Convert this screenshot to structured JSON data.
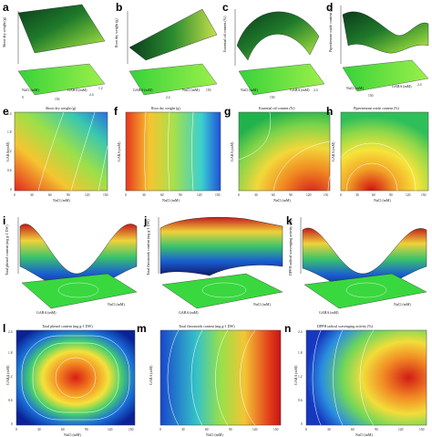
{
  "figure": {
    "panels": [
      {
        "letter": "a",
        "type": "surface",
        "zaxis": "Shoot dry weight (g)",
        "xaxis": "NaCl (mM)",
        "yaxis": "GABA (mM)",
        "ticks_x": [
          "0",
          "150"
        ],
        "ticks_y": [
          "2.4",
          "1.2"
        ],
        "shape": "plane-tilt",
        "colormap": "green-yellow"
      },
      {
        "letter": "b",
        "type": "surface",
        "zaxis": "Root dry weight (g)",
        "xaxis": "GABA (mM)",
        "yaxis": "NaCl (mM)",
        "ticks_x": [
          "2.4"
        ],
        "ticks_y": [
          "150"
        ],
        "shape": "plane-tilt",
        "colormap": "green-yellow"
      },
      {
        "letter": "c",
        "type": "surface",
        "zaxis": "Essential oil content (%)",
        "xaxis": "NaCl (mM)",
        "yaxis": "GABA (mM)",
        "ticks_x": [
          "150"
        ],
        "ticks_y": [
          "2.4"
        ],
        "shape": "ridge",
        "colormap": "green-yellow"
      },
      {
        "letter": "d",
        "type": "surface",
        "zaxis": "Piperitenone oxide content (%)",
        "xaxis": "NaCl (mM)",
        "yaxis": "GABA (mM)",
        "ticks_x": [
          "150"
        ],
        "ticks_y": [
          "2.4"
        ],
        "shape": "saddle",
        "colormap": "green-yellow"
      },
      {
        "letter": "e",
        "type": "contour",
        "title": "Shoot dry weight (g)",
        "xlabel": "NaCl (mM)",
        "ylabel": "GABA (mM)",
        "xticks": [
          "0",
          "30",
          "60",
          "90",
          "120",
          "150"
        ],
        "yticks": [
          "0",
          "0.6",
          "1.2",
          "1.8",
          "2.4"
        ],
        "pattern": "diagonal-red-left"
      },
      {
        "letter": "f",
        "type": "contour",
        "title": "Root dry weight (g)",
        "xlabel": "NaCl (mM)",
        "ylabel": "GABA (mM)",
        "xticks": [
          "0",
          "30",
          "60",
          "90",
          "120",
          "150"
        ],
        "yticks": [
          "0",
          "0.6",
          "1.2",
          "1.8",
          "2.4"
        ],
        "pattern": "vertical-red-left"
      },
      {
        "letter": "g",
        "type": "contour",
        "title": "Essential oil content (%)",
        "xlabel": "NaCl (mM)",
        "ylabel": "GABA (mM)",
        "xticks": [
          "0",
          "30",
          "60",
          "90",
          "120",
          "150"
        ],
        "yticks": [
          "0",
          "0.6",
          "1.2",
          "1.8",
          "2.4"
        ],
        "pattern": "hotspot-bottom-right"
      },
      {
        "letter": "h",
        "type": "contour",
        "title": "Piperitenone oxide content (%)",
        "xlabel": "NaCl (mM)",
        "ylabel": "GABA (mM)",
        "xticks": [
          "0",
          "30",
          "60",
          "90",
          "120",
          "150"
        ],
        "yticks": [
          "0",
          "0.6",
          "1.2",
          "1.8",
          "2.4"
        ],
        "pattern": "hotspot-bottom-center"
      },
      {
        "letter": "i",
        "type": "surface",
        "zaxis": "Total phenol content (mg g-1 DW)",
        "xaxis": "NaCl (mM)",
        "yaxis": "GABA (mM)",
        "ticks_x": [
          "0",
          "30",
          "60",
          "90",
          "120",
          "150"
        ],
        "ticks_y": [
          "0",
          "1.2",
          "2.4"
        ],
        "shape": "bowl",
        "colormap": "jet"
      },
      {
        "letter": "j",
        "type": "surface",
        "zaxis": "Total flavonoids content (mg g-1 DW)",
        "xaxis": "NaCl (mM)",
        "yaxis": "GABA (mM)",
        "ticks_x": [
          "0",
          "30",
          "60",
          "90",
          "120",
          "150"
        ],
        "ticks_y": [
          "0",
          "1.2",
          "2.4"
        ],
        "shape": "bowl-back-high",
        "colormap": "jet"
      },
      {
        "letter": "k",
        "type": "surface",
        "zaxis": "DPPH radical scavenging activity (%)",
        "xaxis": "NaCl (mM)",
        "yaxis": "GABA (mM)",
        "ticks_x": [
          "0",
          "30",
          "60",
          "90",
          "120",
          "150"
        ],
        "ticks_y": [
          "0",
          "1.2",
          "2.4"
        ],
        "shape": "bowl",
        "colormap": "jet"
      },
      {
        "letter": "l",
        "type": "contour",
        "title": "Total phenol content (mg g-1 DW)",
        "xlabel": "NaCl (mM)",
        "ylabel": "GABA (mM)",
        "xticks": [
          "0",
          "30",
          "60",
          "90",
          "120",
          "150"
        ],
        "yticks": [
          "0",
          "0.6",
          "1.2",
          "1.8",
          "2.4"
        ],
        "pattern": "centered-red"
      },
      {
        "letter": "m",
        "type": "contour",
        "title": "Total flavonoids content (mg g-1 DW)",
        "xlabel": "NaCl (mM)",
        "ylabel": "GABA (mM)",
        "xticks": [
          "0",
          "30",
          "60",
          "90",
          "120",
          "150"
        ],
        "yticks": [
          "0",
          "0.6",
          "1.2",
          "1.8",
          "2.4"
        ],
        "pattern": "red-right-bands"
      },
      {
        "letter": "n",
        "type": "contour",
        "title": "DPPH radical scavenging activity (%)",
        "xlabel": "NaCl (mM)",
        "ylabel": "GABA (mM)",
        "xticks": [
          "0",
          "30",
          "60",
          "90",
          "120",
          "150"
        ],
        "yticks": [
          "0",
          "0.6",
          "1.2",
          "1.8",
          "2.4"
        ],
        "pattern": "red-right-center"
      }
    ]
  }
}
